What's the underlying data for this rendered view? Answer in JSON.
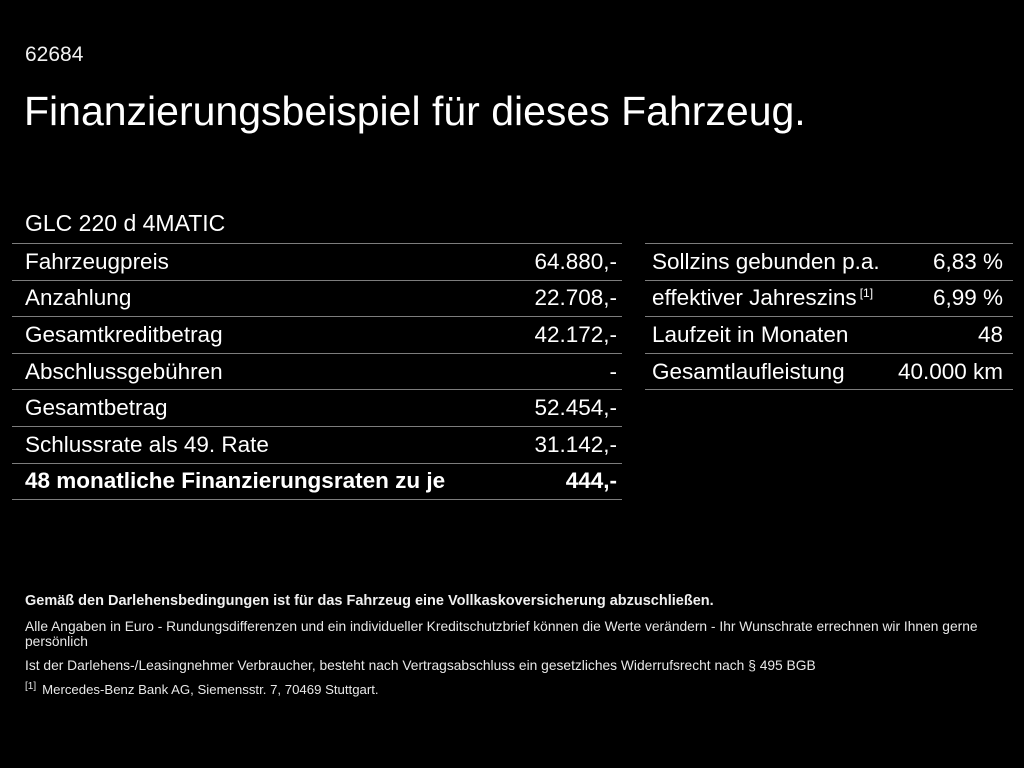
{
  "page": {
    "ref_number": "62684",
    "title": "Finanzierungsbeispiel für dieses Fahrzeug.",
    "model": "GLC 220 d 4MATIC"
  },
  "left_table": {
    "rows": [
      {
        "label": "Fahrzeugpreis",
        "value": "64.880,-"
      },
      {
        "label": "Anzahlung",
        "value": "22.708,-"
      },
      {
        "label": "Gesamtkreditbetrag",
        "value": "42.172,-"
      },
      {
        "label": "Abschlussgebühren",
        "value": "-"
      },
      {
        "label": "Gesamtbetrag",
        "value": "52.454,-"
      },
      {
        "label": "Schlussrate als 49. Rate",
        "value": "31.142,-"
      },
      {
        "label": "48 monatliche Finanzierungsraten zu je",
        "value": "444,-"
      }
    ]
  },
  "right_table": {
    "rows": [
      {
        "label": "Sollzins gebunden p.a.",
        "marker": "",
        "value": "6,83 %"
      },
      {
        "label": "effektiver Jahreszins",
        "marker": "[1]",
        "value": "6,99 %"
      },
      {
        "label": "Laufzeit in Monaten",
        "marker": "",
        "value": "48"
      },
      {
        "label": "Gesamtlaufleistung",
        "marker": "",
        "value": "40.000 km"
      }
    ]
  },
  "footer": {
    "bold_note": "Gemäß den Darlehensbedingungen ist für das Fahrzeug eine Vollkaskoversicherung abzuschließen.",
    "note2": "Alle Angaben in Euro - Rundungsdifferenzen und ein individueller Kreditschutzbrief können die Werte verändern - Ihr Wunschrate errechnen wir Ihnen gerne persönlich",
    "note3": "Ist der Darlehens-/Leasingnehmer Verbraucher, besteht nach Vertragsabschluss ein gesetzliches Widerrufsrecht nach § 495 BGB",
    "footnote_marker": "[1]",
    "footnote_text": "Mercedes-Benz Bank AG, Siemensstr. 7, 70469 Stuttgart."
  },
  "colors": {
    "background": "#000000",
    "text": "#ffffff",
    "divider": "#7d7d7d"
  }
}
